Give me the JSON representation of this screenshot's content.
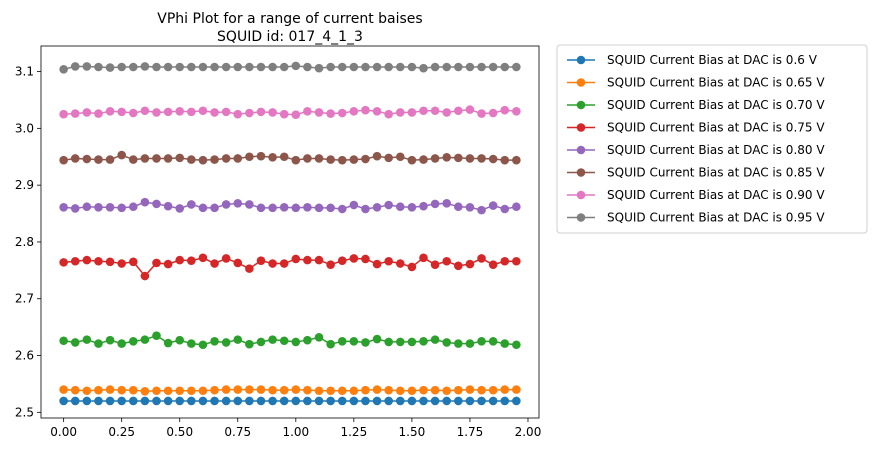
{
  "chart_data": {
    "type": "line",
    "title": "VPhi Plot for a range of current baises",
    "subtitle": "SQUID id: 017_4_1_3",
    "xlabel": "",
    "ylabel": "",
    "xlim": [
      -0.0975,
      2.0475
    ],
    "ylim": [
      2.49,
      3.145
    ],
    "xticks": [
      0.0,
      0.25,
      0.5,
      0.75,
      1.0,
      1.25,
      1.5,
      1.75,
      2.0
    ],
    "xtick_labels": [
      "0.00",
      "0.25",
      "0.50",
      "0.75",
      "1.00",
      "1.25",
      "1.50",
      "1.75",
      "2.00"
    ],
    "yticks": [
      2.5,
      2.6,
      2.7,
      2.8,
      2.9,
      3.0,
      3.1
    ],
    "ytick_labels": [
      "2.5",
      "2.6",
      "2.7",
      "2.8",
      "2.9",
      "3.0",
      "3.1"
    ],
    "grid": false,
    "legend_position": "outside-right-top",
    "x": [
      0.0,
      0.05,
      0.1,
      0.15,
      0.2,
      0.25,
      0.3,
      0.35,
      0.4,
      0.45,
      0.5,
      0.55,
      0.6,
      0.65,
      0.7,
      0.75,
      0.8,
      0.85,
      0.9,
      0.95,
      1.0,
      1.05,
      1.1,
      1.15,
      1.2,
      1.25,
      1.3,
      1.35,
      1.4,
      1.45,
      1.5,
      1.55,
      1.6,
      1.65,
      1.7,
      1.75,
      1.8,
      1.85,
      1.9,
      1.95
    ],
    "series": [
      {
        "name": "SQUID Current Bias at DAC is 0.6  V",
        "color": "#1f77b4",
        "values": [
          2.52,
          2.52,
          2.52,
          2.52,
          2.52,
          2.52,
          2.52,
          2.52,
          2.52,
          2.52,
          2.52,
          2.52,
          2.52,
          2.52,
          2.52,
          2.52,
          2.52,
          2.52,
          2.52,
          2.52,
          2.52,
          2.52,
          2.52,
          2.52,
          2.52,
          2.52,
          2.52,
          2.52,
          2.52,
          2.52,
          2.52,
          2.52,
          2.52,
          2.52,
          2.52,
          2.52,
          2.52,
          2.52,
          2.52,
          2.52
        ]
      },
      {
        "name": "SQUID Current Bias at DAC is 0.65 V",
        "color": "#ff7f0e",
        "values": [
          2.54,
          2.539,
          2.538,
          2.539,
          2.54,
          2.539,
          2.539,
          2.537,
          2.538,
          2.538,
          2.538,
          2.538,
          2.538,
          2.539,
          2.54,
          2.54,
          2.54,
          2.54,
          2.539,
          2.539,
          2.54,
          2.539,
          2.538,
          2.538,
          2.538,
          2.538,
          2.539,
          2.54,
          2.539,
          2.538,
          2.538,
          2.539,
          2.539,
          2.538,
          2.539,
          2.54,
          2.539,
          2.539,
          2.54,
          2.54
        ]
      },
      {
        "name": "SQUID Current Bias at DAC is 0.70 V",
        "color": "#2ca02c",
        "values": [
          2.626,
          2.623,
          2.628,
          2.621,
          2.627,
          2.621,
          2.625,
          2.628,
          2.635,
          2.622,
          2.627,
          2.621,
          2.619,
          2.625,
          2.623,
          2.628,
          2.62,
          2.624,
          2.628,
          2.626,
          2.624,
          2.627,
          2.632,
          2.62,
          2.625,
          2.625,
          2.623,
          2.629,
          2.624,
          2.624,
          2.624,
          2.625,
          2.628,
          2.623,
          2.621,
          2.621,
          2.625,
          2.625,
          2.621,
          2.619
        ]
      },
      {
        "name": "SQUID Current Bias at DAC is 0.75 V",
        "color": "#d62728",
        "values": [
          2.764,
          2.766,
          2.768,
          2.766,
          2.765,
          2.762,
          2.765,
          2.74,
          2.763,
          2.761,
          2.768,
          2.767,
          2.772,
          2.762,
          2.771,
          2.763,
          2.753,
          2.767,
          2.762,
          2.762,
          2.77,
          2.768,
          2.768,
          2.76,
          2.767,
          2.771,
          2.77,
          2.761,
          2.766,
          2.762,
          2.756,
          2.772,
          2.76,
          2.766,
          2.758,
          2.761,
          2.771,
          2.76,
          2.766,
          2.766
        ]
      },
      {
        "name": "SQUID Current Bias at DAC is 0.80 V",
        "color": "#9467bd",
        "values": [
          2.861,
          2.859,
          2.862,
          2.861,
          2.861,
          2.86,
          2.862,
          2.87,
          2.867,
          2.863,
          2.859,
          2.866,
          2.86,
          2.86,
          2.866,
          2.868,
          2.866,
          2.86,
          2.86,
          2.861,
          2.86,
          2.861,
          2.86,
          2.86,
          2.858,
          2.865,
          2.858,
          2.861,
          2.865,
          2.862,
          2.861,
          2.863,
          2.867,
          2.868,
          2.862,
          2.861,
          2.856,
          2.864,
          2.858,
          2.862
        ]
      },
      {
        "name": "SQUID Current Bias at DAC is 0.85 V",
        "color": "#8c564b",
        "values": [
          2.944,
          2.947,
          2.946,
          2.945,
          2.945,
          2.953,
          2.945,
          2.947,
          2.947,
          2.947,
          2.948,
          2.945,
          2.944,
          2.945,
          2.947,
          2.947,
          2.95,
          2.951,
          2.949,
          2.95,
          2.944,
          2.947,
          2.947,
          2.945,
          2.944,
          2.945,
          2.946,
          2.951,
          2.948,
          2.95,
          2.944,
          2.945,
          2.947,
          2.949,
          2.948,
          2.947,
          2.947,
          2.946,
          2.944,
          2.944
        ]
      },
      {
        "name": "SQUID Current Bias at DAC is 0.90 V",
        "color": "#e377c2",
        "values": [
          3.025,
          3.026,
          3.028,
          3.026,
          3.03,
          3.029,
          3.027,
          3.031,
          3.028,
          3.029,
          3.03,
          3.029,
          3.031,
          3.028,
          3.029,
          3.025,
          3.027,
          3.029,
          3.028,
          3.025,
          3.024,
          3.03,
          3.028,
          3.026,
          3.027,
          3.03,
          3.032,
          3.03,
          3.025,
          3.028,
          3.028,
          3.031,
          3.031,
          3.028,
          3.031,
          3.033,
          3.026,
          3.027,
          3.032,
          3.03
        ]
      },
      {
        "name": "SQUID Current Bias at DAC is 0.95 V",
        "color": "#7f7f7f",
        "values": [
          3.104,
          3.109,
          3.109,
          3.108,
          3.107,
          3.108,
          3.108,
          3.109,
          3.108,
          3.108,
          3.108,
          3.108,
          3.108,
          3.108,
          3.108,
          3.108,
          3.108,
          3.108,
          3.108,
          3.108,
          3.11,
          3.108,
          3.106,
          3.108,
          3.108,
          3.108,
          3.108,
          3.108,
          3.108,
          3.108,
          3.108,
          3.106,
          3.108,
          3.108,
          3.108,
          3.108,
          3.108,
          3.108,
          3.108,
          3.108
        ]
      }
    ]
  }
}
